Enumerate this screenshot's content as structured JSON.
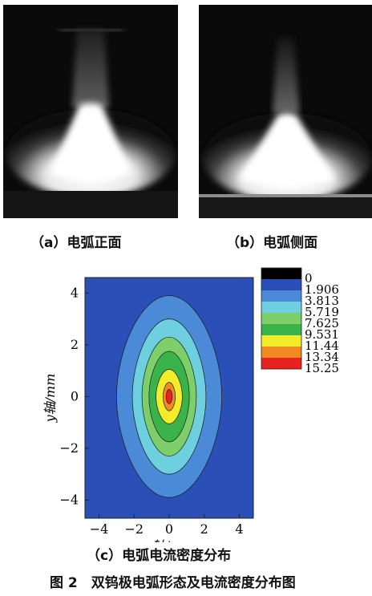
{
  "captions": {
    "a": "（a）电弧正面",
    "b": "（b）电弧侧面",
    "c": "（c）电弧电流密度分布",
    "figure": "图 2　双钨极电弧形态及电流密度分布图"
  },
  "photos": [
    {
      "name": "arc-front-photo",
      "description_color": "#0a0a0a"
    },
    {
      "name": "arc-side-photo",
      "description_color": "#0a0a0a"
    }
  ],
  "chart_data": {
    "type": "heatmap",
    "title": "",
    "xlabel": "x轴/mm",
    "ylabel": "y轴/mm",
    "xlim": [
      -4.8,
      4.8
    ],
    "ylim": [
      -4.7,
      4.6
    ],
    "xticks": [
      -4,
      -2,
      0,
      2,
      4
    ],
    "yticks": [
      4,
      2,
      0,
      -2,
      -4
    ],
    "legend": {
      "placement": "right",
      "levels": [
        "0",
        "1.906",
        "3.813",
        "5.719",
        "7.625",
        "9.531",
        "11.44",
        "13.34",
        "15.25"
      ],
      "colors": [
        "#000000",
        "#2a4fb6",
        "#4a8ad6",
        "#6ecfde",
        "#7ecf6a",
        "#3ab34a",
        "#f2ec2a",
        "#f28a22",
        "#e8231f"
      ]
    },
    "contours": [
      {
        "level": "1.906",
        "color": "#4a8ad6",
        "half_width_x": 3.0,
        "half_height_y": 3.9
      },
      {
        "level": "3.813",
        "color": "#6ecfde",
        "half_width_x": 2.1,
        "half_height_y": 3.0
      },
      {
        "level": "5.719",
        "color": "#7ecf6a",
        "half_width_x": 1.55,
        "half_height_y": 2.3
      },
      {
        "level": "7.625",
        "color": "#3ab34a",
        "half_width_x": 1.15,
        "half_height_y": 1.75
      },
      {
        "level": "9.531",
        "color": "#f2ec2a",
        "half_width_x": 0.75,
        "half_height_y": 1.05
      },
      {
        "level": "11.44",
        "color": "#f28a22",
        "half_width_x": 0.35,
        "half_height_y": 0.55
      },
      {
        "level": "13.34",
        "color": "#e8231f",
        "half_width_x": 0.18,
        "half_height_y": 0.28
      }
    ],
    "center": [
      0,
      0
    ],
    "background_color": "#2a4fb6"
  }
}
